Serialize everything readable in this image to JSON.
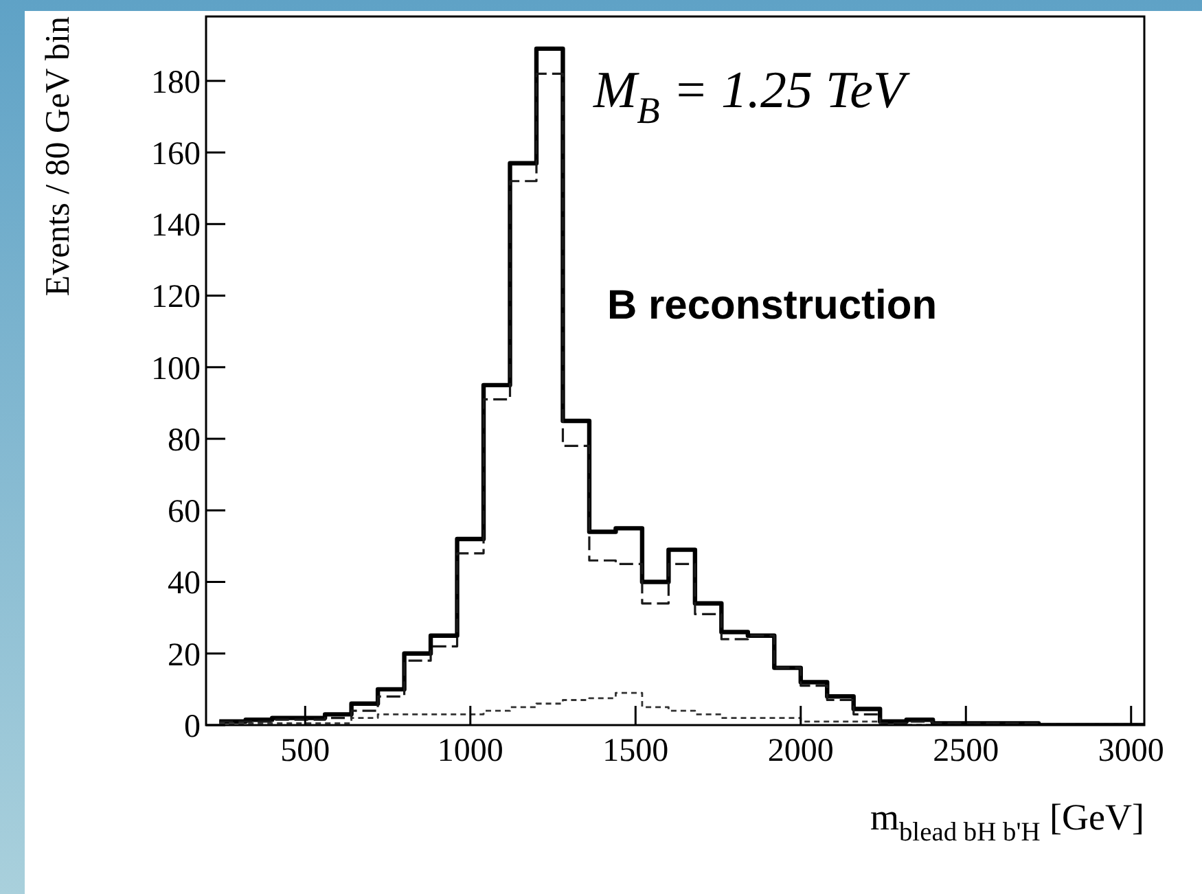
{
  "chart_data": {
    "type": "histogram",
    "xlabel": "m$_{blead bH b'H}$ [GeV]",
    "ylabel": "Events / 80 GeV bin",
    "annotations": [
      "M$_{B}$ = 1.25 TeV",
      "B reconstruction"
    ],
    "bins": [
      240,
      320,
      400,
      480,
      560,
      640,
      720,
      800,
      880,
      960,
      1040,
      1120,
      1200,
      1280,
      1360,
      1440,
      1520,
      1600,
      1680,
      1760,
      1840,
      1920,
      2000,
      2080,
      2160,
      2240,
      2320,
      2400,
      2480,
      2560,
      2640,
      2720,
      2800,
      2880,
      2960,
      3040
    ],
    "series": [
      {
        "color": "#000000",
        "line_style": "solid",
        "values": [
          1,
          1.5,
          2,
          2,
          3,
          6,
          10,
          20,
          25,
          52,
          95,
          157,
          189,
          85,
          54,
          55,
          40,
          49,
          34,
          26,
          25,
          16,
          12,
          8,
          4.5,
          1,
          1.5,
          0.5,
          0.5,
          0.5,
          0.5,
          0,
          0,
          0,
          0
        ]
      },
      {
        "color": "#1a1a1a",
        "line_style": "dashed",
        "values": [
          1,
          1,
          1.5,
          1.5,
          2,
          4,
          8,
          18,
          22,
          48,
          91,
          152,
          182,
          78,
          46,
          45,
          34,
          45,
          31,
          24,
          25,
          16,
          11,
          7,
          3,
          0.5,
          1,
          0.5,
          0.5,
          0.5,
          0.5,
          0,
          0,
          0,
          0
        ]
      },
      {
        "color": "#333333",
        "line_style": "dotted",
        "values": [
          0.5,
          0.5,
          0.5,
          0.5,
          0.5,
          2,
          3,
          3,
          3,
          3,
          4,
          5,
          6,
          7,
          7.5,
          9,
          5,
          4,
          3,
          2,
          2,
          2,
          1,
          1,
          1,
          0,
          0,
          0,
          0,
          0,
          0,
          0,
          0,
          0,
          0
        ]
      }
    ],
    "xlim": [
      200,
      3040
    ],
    "ylim": [
      0,
      198
    ],
    "xticks": [
      500,
      1000,
      1500,
      2000,
      2500,
      3000
    ],
    "yticks": [
      0,
      20,
      40,
      60,
      80,
      100,
      120,
      140,
      160,
      180
    ]
  }
}
